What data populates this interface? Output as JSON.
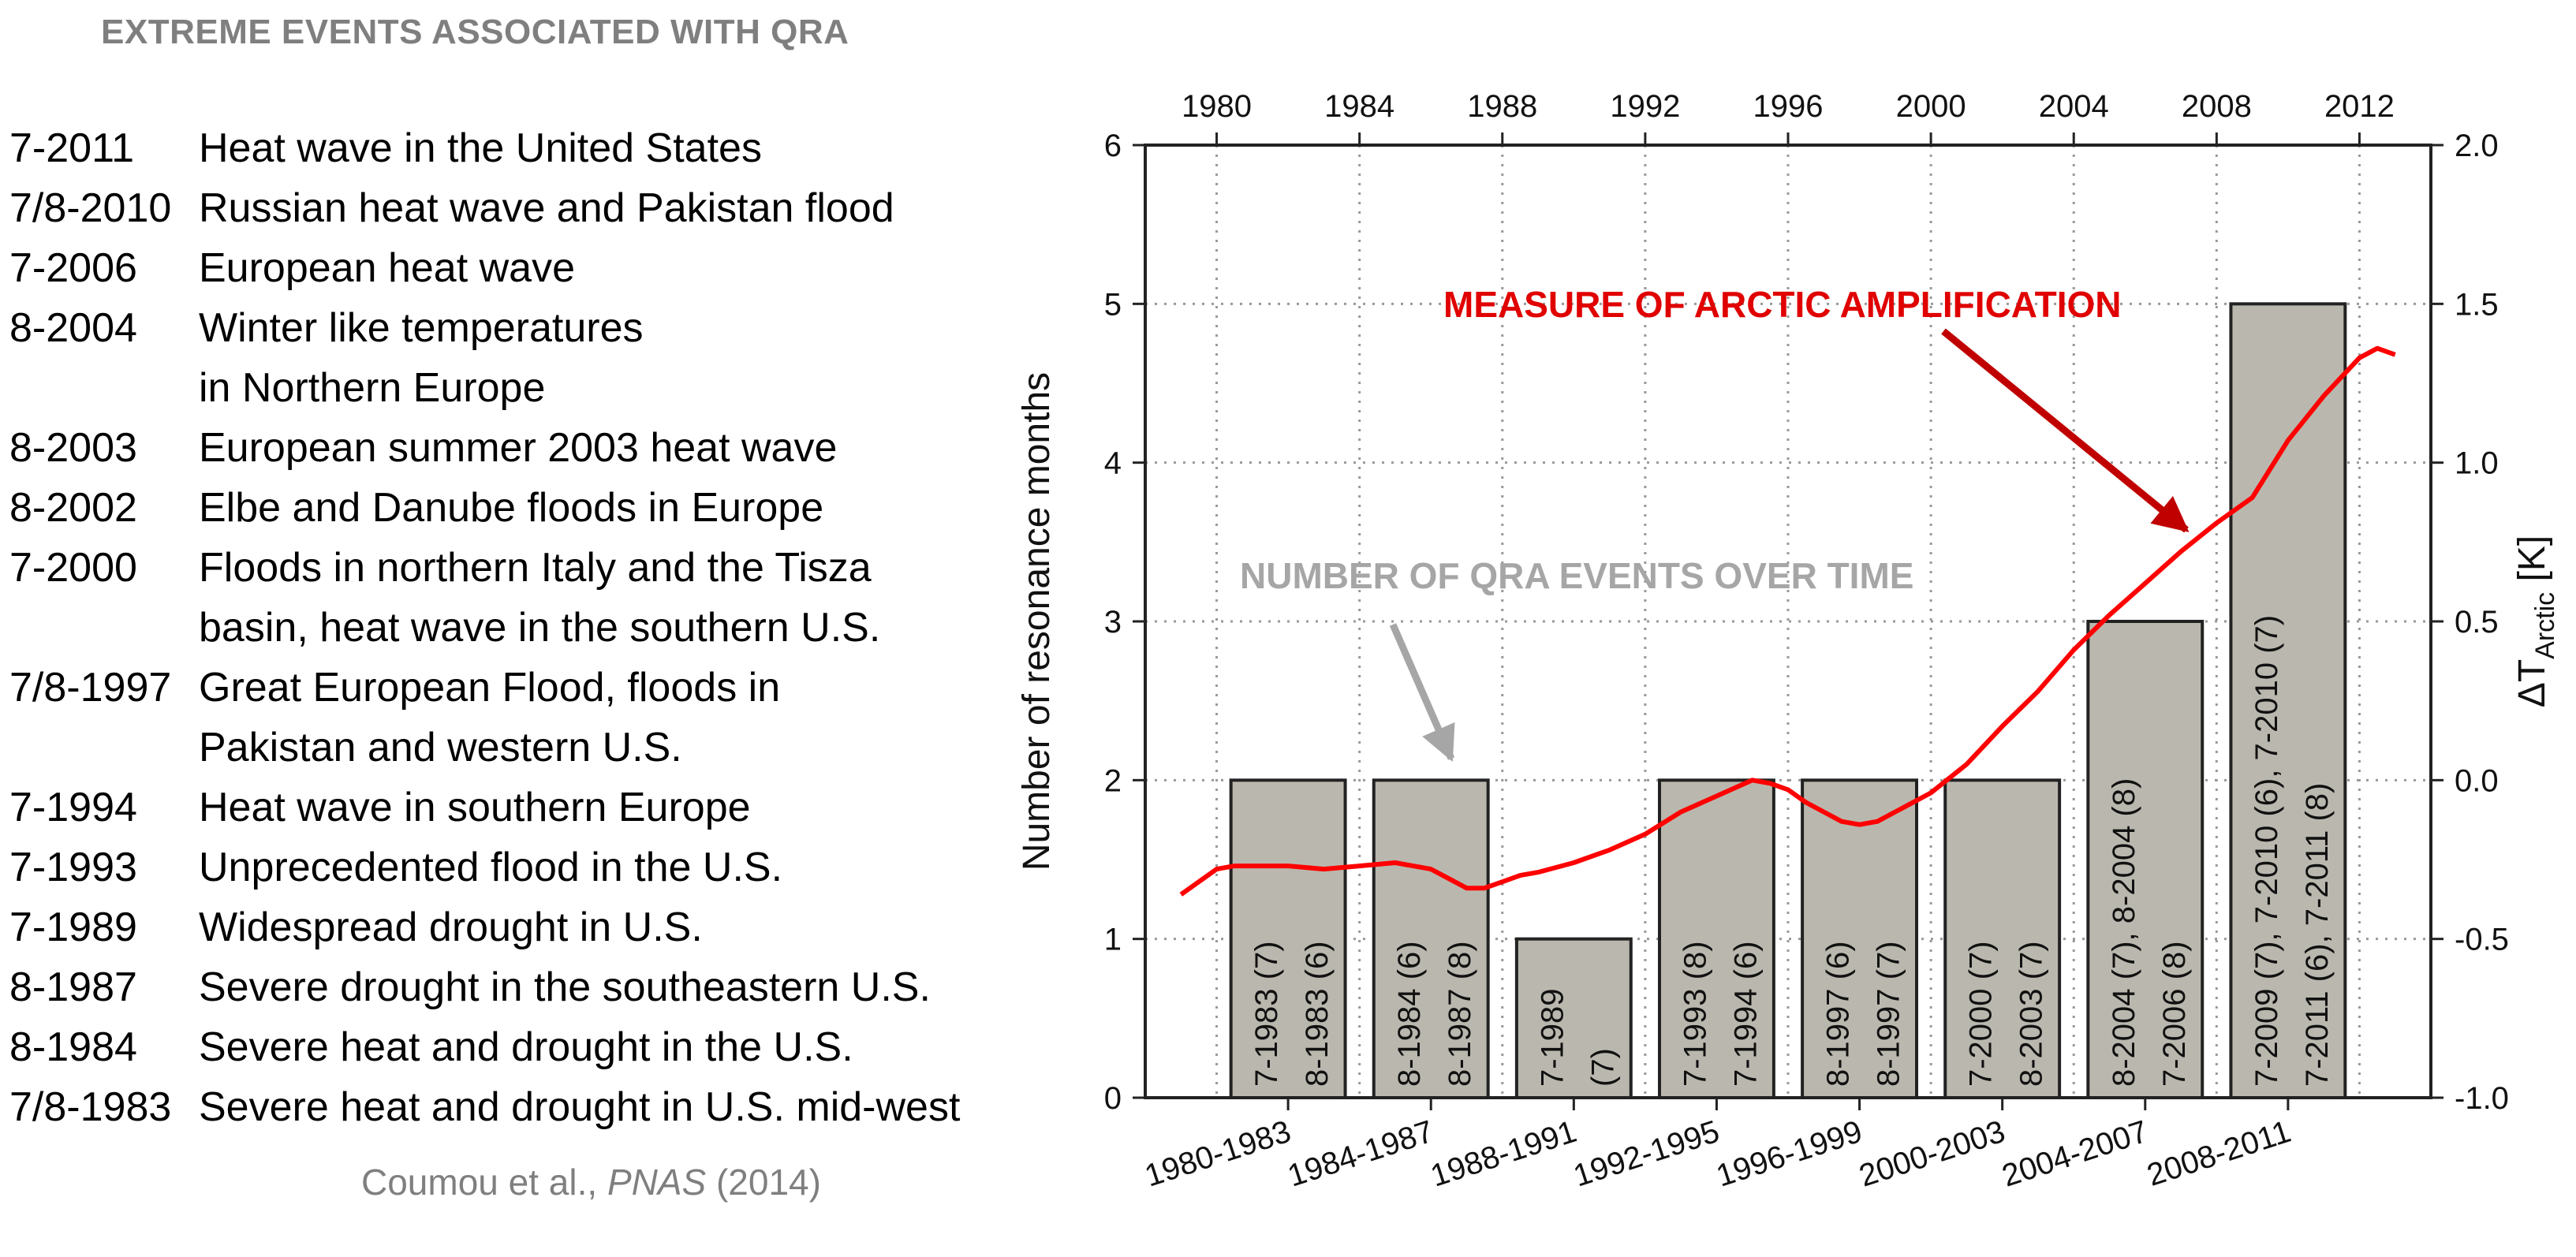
{
  "left_panel": {
    "title": "EXTREME EVENTS ASSOCIATED WITH QRA",
    "events": [
      {
        "date": "7-2011",
        "lines": [
          "Heat wave in the United States"
        ]
      },
      {
        "date": "7/8-2010",
        "lines": [
          "Russian heat wave and Pakistan flood"
        ]
      },
      {
        "date": "7-2006",
        "lines": [
          "European heat wave"
        ]
      },
      {
        "date": "8-2004",
        "lines": [
          "Winter like temperatures",
          "in Northern Europe"
        ]
      },
      {
        "date": "8-2003",
        "lines": [
          "European summer 2003 heat wave"
        ]
      },
      {
        "date": "8-2002",
        "lines": [
          "Elbe and Danube floods in Europe"
        ]
      },
      {
        "date": "7-2000",
        "lines": [
          "Floods in northern Italy and the Tisza",
          "basin, heat wave in the southern U.S."
        ]
      },
      {
        "date": "7/8-1997",
        "lines": [
          "Great European Flood, floods in",
          "Pakistan and western U.S."
        ]
      },
      {
        "date": "7-1994",
        "lines": [
          "Heat wave in southern Europe"
        ]
      },
      {
        "date": "7-1993",
        "lines": [
          "Unprecedented flood in the U.S."
        ]
      },
      {
        "date": "7-1989",
        "lines": [
          "Widespread drought in U.S."
        ]
      },
      {
        "date": "8-1987",
        "lines": [
          "Severe drought in the southeastern U.S."
        ]
      },
      {
        "date": "8-1984",
        "lines": [
          "Severe heat and drought in the U.S."
        ]
      },
      {
        "date": "7/8-1983",
        "lines": [
          "Severe heat and drought in U.S. mid-west"
        ]
      }
    ],
    "citation": {
      "authors": "Coumou  et al., ",
      "journal": "PNAS",
      "year": " (2014)"
    }
  },
  "chart_data": {
    "type": "bar",
    "categories": [
      "1980-1983",
      "1984-1987",
      "1988-1991",
      "1992-1995",
      "1996-1999",
      "2000-2003",
      "2004-2007",
      "2008-2011"
    ],
    "values": [
      2,
      2,
      1,
      2,
      2,
      2,
      3,
      5
    ],
    "bar_labels": [
      [
        "7-1983 (7)",
        "8-1983 (6)"
      ],
      [
        "8-1984 (6)",
        "8-1987 (8)"
      ],
      [
        "7-1989",
        "(7)"
      ],
      [
        "7-1993 (8)",
        "7-1994 (6)"
      ],
      [
        "8-1997 (6)",
        "8-1997 (7)"
      ],
      [
        "7-2000 (7)",
        "8-2003 (7)"
      ],
      [
        "8-2004 (7), 8-2004 (8)",
        "7-2006 (8)"
      ],
      [
        "7-2009 (7), 7-2010 (6), 7-2010 (7)",
        "7-2011 (6), 7-2011 (8)"
      ]
    ],
    "bar_color": "#bab8ae",
    "ylabel": "Number of resonance months",
    "ylim": [
      0,
      6
    ],
    "yticks": [
      0,
      1,
      2,
      3,
      4,
      5,
      6
    ],
    "top_axis": {
      "ticks": [
        1980,
        1984,
        1988,
        1992,
        1996,
        2000,
        2004,
        2008,
        2012
      ],
      "range": [
        1978,
        2014
      ]
    },
    "right_axis": {
      "label_prefix": "ΔT",
      "label_subscript": "Arctic",
      "label_suffix": " [K]",
      "ylim": [
        -1.0,
        2.0
      ],
      "ticks": [
        "-1.0",
        "-0.5",
        "0.0",
        "0.5",
        "1.0",
        "1.5",
        "2.0"
      ]
    },
    "line_series": {
      "color": "#ff0000",
      "x": [
        1979.0,
        1979.5,
        1980.0,
        1980.5,
        1981.0,
        1982.0,
        1983.0,
        1984.0,
        1985.0,
        1985.5,
        1986.0,
        1986.5,
        1987.0,
        1987.5,
        1988.0,
        1988.5,
        1989.0,
        1990.0,
        1991.0,
        1992.0,
        1993.0,
        1994.0,
        1995.0,
        1995.5,
        1996.0,
        1996.5,
        1997.0,
        1997.5,
        1998.0,
        1998.5,
        1999.0,
        1999.5,
        2000.0,
        2001.0,
        2002.0,
        2003.0,
        2004.0,
        2005.0,
        2006.0,
        2007.0,
        2008.0,
        2009.0,
        2010.0,
        2011.0,
        2012.0,
        2012.5,
        2013.0
      ],
      "y": [
        -0.36,
        -0.32,
        -0.28,
        -0.27,
        -0.27,
        -0.27,
        -0.28,
        -0.27,
        -0.26,
        -0.27,
        -0.28,
        -0.31,
        -0.34,
        -0.34,
        -0.32,
        -0.3,
        -0.29,
        -0.26,
        -0.22,
        -0.17,
        -0.1,
        -0.05,
        0.0,
        -0.01,
        -0.03,
        -0.07,
        -0.1,
        -0.13,
        -0.14,
        -0.13,
        -0.1,
        -0.07,
        -0.04,
        0.05,
        0.17,
        0.28,
        0.41,
        0.52,
        0.62,
        0.72,
        0.81,
        0.89,
        1.07,
        1.21,
        1.33,
        1.36,
        1.34
      ]
    },
    "annotations": {
      "arctic": {
        "text": "MEASURE OF ARCTIC AMPLIFICATION",
        "color": "#e00000"
      },
      "qra": {
        "text": "NUMBER OF QRA EVENTS OVER TIME",
        "color": "#a6a6a6"
      }
    },
    "grid": true
  }
}
